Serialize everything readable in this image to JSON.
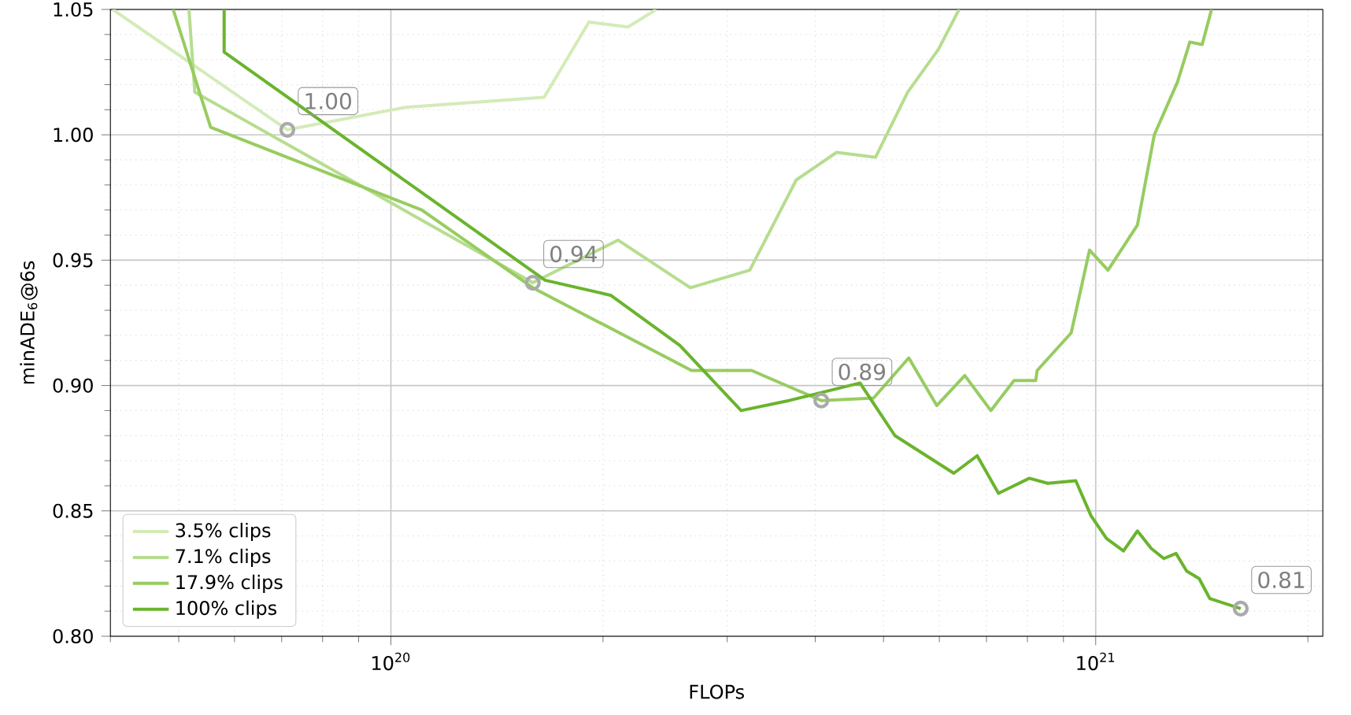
{
  "chart_data": {
    "type": "line",
    "xlabel": "FLOPs",
    "ylabel": "minADE$_{6}$@6s",
    "log": "x",
    "grid": true,
    "legend": "bottom left",
    "line_style": "solid",
    "marker": "none",
    "xlim": [
      4e+19,
      2.1e+21
    ],
    "xticks": [
      {
        "value": 1e+20,
        "label": "10$^{20}$"
      },
      {
        "value": 1e+21,
        "label": "10$^{21}$"
      }
    ],
    "ylim": [
      0.8,
      1.05
    ],
    "yticks": [
      {
        "value": 0.8,
        "label": "0.80"
      },
      {
        "value": 0.85,
        "label": "0.85"
      },
      {
        "value": 0.9,
        "label": "0.90"
      },
      {
        "value": 0.95,
        "label": "0.95"
      },
      {
        "value": 1.0,
        "label": "1.00"
      },
      {
        "value": 1.05,
        "label": "1.05"
      }
    ],
    "series": [
      {
        "name": "3.5% clips",
        "color": "#d4ebb8",
        "x": [
          4.03e+19,
          7.13e+19,
          1.05e+20,
          1.65e+20,
          1.91e+20,
          2.17e+20,
          2.38e+20
        ],
        "values": [
          1.05,
          1.002,
          1.011,
          1.015,
          1.045,
          1.043,
          1.05
        ]
      },
      {
        "name": "7.1% clips",
        "color": "#b6dd8f",
        "x": [
          5.17e+19,
          5.27e+19,
          1.59e+20,
          2.1e+20,
          2.66e+20,
          3.23e+20,
          3.76e+20,
          4.29e+20,
          4.87e+20,
          5.41e+20,
          5.98e+20,
          6.4e+20
        ],
        "values": [
          1.05,
          1.017,
          0.941,
          0.958,
          0.939,
          0.946,
          0.982,
          0.993,
          0.991,
          1.017,
          1.034,
          1.05
        ]
      },
      {
        "name": "17.9% clips",
        "color": "#97cc60",
        "x": [
          4.91e+19,
          5.55e+19,
          1.106e+20,
          1.59e+20,
          2.67e+20,
          3.25e+20,
          4.08e+20,
          4.84e+20,
          5.43e+20,
          5.95e+20,
          6.52e+20,
          7.1e+20,
          7.66e+20,
          8.22e+20,
          8.26e+20,
          9.23e+20,
          9.8e+20,
          1.041e+21,
          1.146e+21,
          1.211e+21,
          1.306e+21,
          1.36e+21,
          1.416e+21,
          1.46e+21
        ],
        "values": [
          1.05,
          1.003,
          0.97,
          0.939,
          0.906,
          0.906,
          0.894,
          0.895,
          0.911,
          0.892,
          0.904,
          0.89,
          0.902,
          0.902,
          0.906,
          0.921,
          0.954,
          0.946,
          0.964,
          1.0,
          1.021,
          1.037,
          1.036,
          1.05
        ]
      },
      {
        "name": "100% clips",
        "color": "#6ab42d",
        "x": [
          5.8e+19,
          5.8e+19,
          1.655e+20,
          2.05e+20,
          2.57e+20,
          3.14e+20,
          3.67e+20,
          4.63e+20,
          5.19e+20,
          6.29e+20,
          6.79e+20,
          7.28e+20,
          8.05e+20,
          8.55e+20,
          9.37e+20,
          9.85e+20,
          1.036e+21,
          1.095e+21,
          1.146e+21,
          1.199e+21,
          1.249e+21,
          1.3e+21,
          1.346e+21,
          1.402e+21,
          1.452e+21,
          1.606e+21
        ],
        "values": [
          1.05,
          1.033,
          0.942,
          0.936,
          0.916,
          0.89,
          0.894,
          0.901,
          0.88,
          0.865,
          0.872,
          0.857,
          0.863,
          0.861,
          0.862,
          0.848,
          0.839,
          0.834,
          0.842,
          0.835,
          0.831,
          0.833,
          0.826,
          0.823,
          0.815,
          0.811
        ]
      },
      {
        "type": "scatter",
        "marker": "circle",
        "color": "#aaaaaa",
        "x": [
          7.13e+19,
          1.59e+20,
          4.08e+20,
          1.606e+21
        ],
        "values": [
          1.002,
          0.941,
          0.894,
          0.811
        ]
      }
    ],
    "annotations": [
      {
        "text": "1.00",
        "x": 7.13e+19,
        "y": 1.002
      },
      {
        "text": "0.94",
        "x": 1.59e+20,
        "y": 0.941
      },
      {
        "text": "0.89",
        "x": 4.08e+20,
        "y": 0.894
      },
      {
        "text": "0.81",
        "x": 1.606e+21,
        "y": 0.811
      }
    ]
  }
}
